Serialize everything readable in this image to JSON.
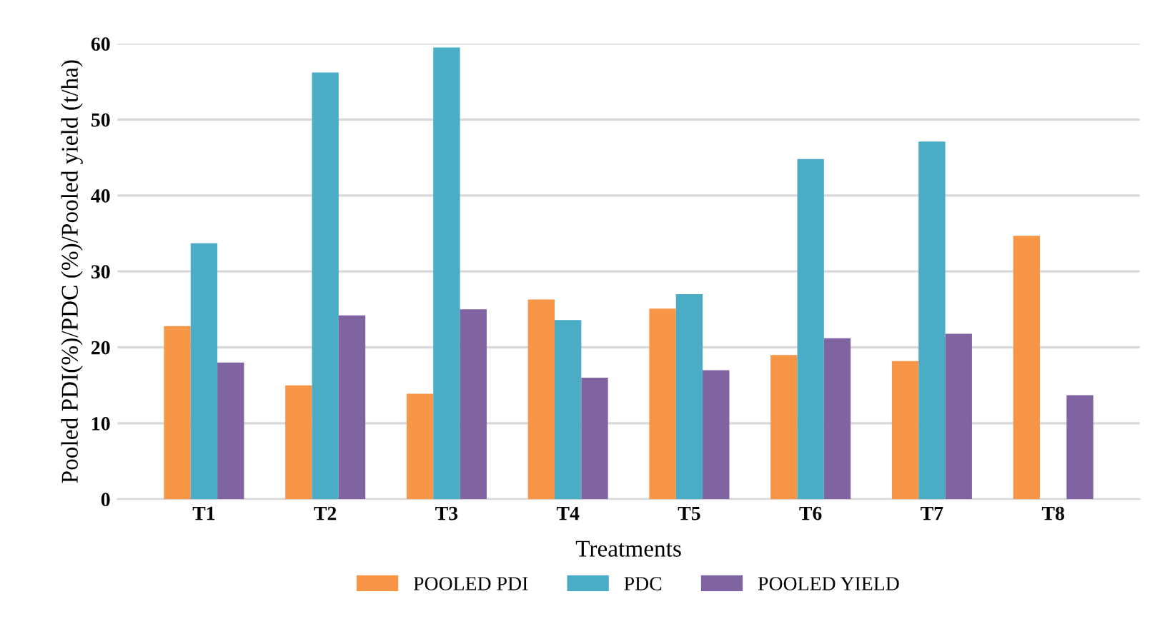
{
  "chart_data": {
    "type": "bar",
    "categories": [
      "T1",
      "T2",
      "T3",
      "T4",
      "T5",
      "T6",
      "T7",
      "T8"
    ],
    "series": [
      {
        "name": "POOLED PDI",
        "color": "#f79646",
        "values": [
          22.8,
          15.0,
          13.9,
          26.3,
          25.1,
          19.0,
          18.2,
          34.7
        ]
      },
      {
        "name": "PDC",
        "color": "#4bacc6",
        "values": [
          33.7,
          56.2,
          59.5,
          23.6,
          27.0,
          44.8,
          47.1,
          0
        ]
      },
      {
        "name": "POOLED YIELD",
        "color": "#8064a2",
        "values": [
          18.0,
          24.2,
          25.0,
          16.0,
          17.0,
          21.2,
          21.8,
          13.7
        ]
      }
    ],
    "xlabel": "Treatments",
    "ylabel": "Pooled PDI(%)/PDC (%)/Pooled yield (t/ha)",
    "ylim": [
      0,
      60
    ],
    "yticks": [
      0,
      10,
      20,
      30,
      40,
      50,
      60
    ],
    "grid": "y",
    "legend": "bottom"
  }
}
